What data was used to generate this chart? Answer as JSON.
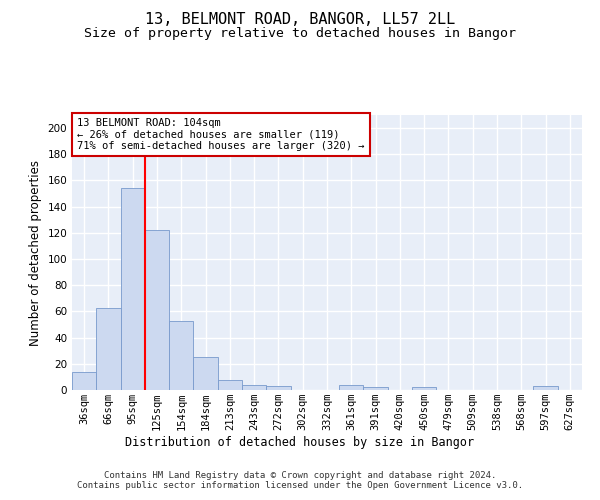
{
  "title1": "13, BELMONT ROAD, BANGOR, LL57 2LL",
  "title2": "Size of property relative to detached houses in Bangor",
  "xlabel": "Distribution of detached houses by size in Bangor",
  "ylabel": "Number of detached properties",
  "categories": [
    "36sqm",
    "66sqm",
    "95sqm",
    "125sqm",
    "154sqm",
    "184sqm",
    "213sqm",
    "243sqm",
    "272sqm",
    "302sqm",
    "332sqm",
    "361sqm",
    "391sqm",
    "420sqm",
    "450sqm",
    "479sqm",
    "509sqm",
    "538sqm",
    "568sqm",
    "597sqm",
    "627sqm"
  ],
  "values": [
    14,
    63,
    154,
    122,
    53,
    25,
    8,
    4,
    3,
    0,
    0,
    4,
    2,
    0,
    2,
    0,
    0,
    0,
    0,
    3,
    0
  ],
  "bar_color": "#ccd9f0",
  "bar_edge_color": "#7799cc",
  "background_color": "#e8eef8",
  "grid_color": "#ffffff",
  "red_line_x": 2.5,
  "annotation_text": "13 BELMONT ROAD: 104sqm\n← 26% of detached houses are smaller (119)\n71% of semi-detached houses are larger (320) →",
  "annotation_box_color": "#ffffff",
  "annotation_box_edge": "#cc0000",
  "ylim": [
    0,
    210
  ],
  "yticks": [
    0,
    20,
    40,
    60,
    80,
    100,
    120,
    140,
    160,
    180,
    200
  ],
  "footer": "Contains HM Land Registry data © Crown copyright and database right 2024.\nContains public sector information licensed under the Open Government Licence v3.0.",
  "title_fontsize": 11,
  "subtitle_fontsize": 9.5,
  "axis_label_fontsize": 8.5,
  "tick_fontsize": 7.5,
  "footer_fontsize": 6.5
}
